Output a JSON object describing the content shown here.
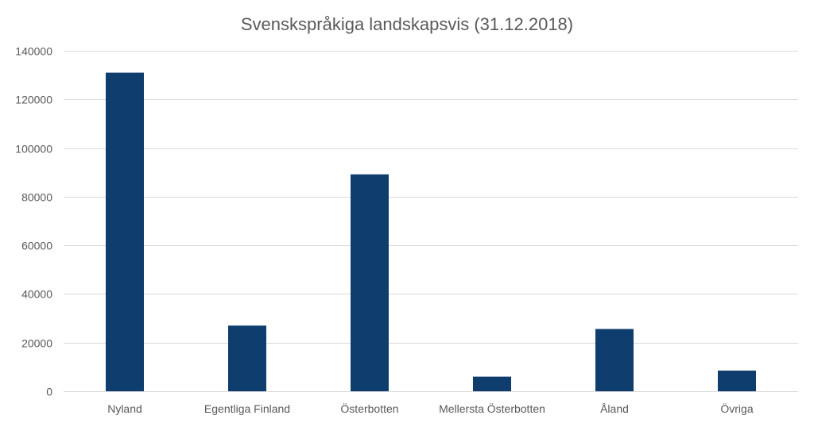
{
  "chart_data": {
    "type": "bar",
    "title": "Svenskspråkiga landskapsvis (31.12.2018)",
    "xlabel": "",
    "ylabel": "",
    "categories": [
      "Nyland",
      "Egentliga Finland",
      "Österbotten",
      "Mellersta Österbotten",
      "Åland",
      "Övriga"
    ],
    "values": [
      131000,
      27000,
      89200,
      6000,
      25600,
      8500
    ],
    "ylim": [
      0,
      140000
    ],
    "yticks": [
      0,
      20000,
      40000,
      60000,
      80000,
      100000,
      120000,
      140000
    ],
    "ytick_labels": [
      "0",
      "20000",
      "40000",
      "60000",
      "80000",
      "100000",
      "120000",
      "140000"
    ],
    "grid": true,
    "legend": "none",
    "bar_color": "#0e3d6e"
  }
}
